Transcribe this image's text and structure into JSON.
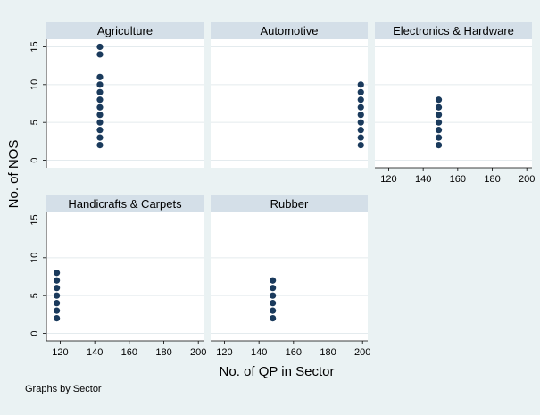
{
  "chart_data": {
    "type": "scatter",
    "facet_by_label": "Graphs by Sector",
    "xlabel": "No. of QP in Sector",
    "ylabel": "No. of NOS",
    "xlim": [
      112,
      203
    ],
    "ylim": [
      -1,
      16
    ],
    "xticks": [
      120,
      140,
      160,
      180,
      200
    ],
    "yticks": [
      0,
      5,
      10,
      15
    ],
    "grid": true,
    "point_color": "#1a3a5c",
    "panels": [
      {
        "title": "Agriculture",
        "x": 143,
        "y": [
          2,
          3,
          4,
          5,
          6,
          7,
          8,
          9,
          10,
          11,
          14,
          15
        ]
      },
      {
        "title": "Automotive",
        "x": 199,
        "y": [
          2,
          3,
          4,
          5,
          6,
          7,
          8,
          9,
          10
        ]
      },
      {
        "title": "Electronics & Hardware",
        "x": 149,
        "y": [
          2,
          3,
          4,
          5,
          6,
          7,
          8
        ]
      },
      {
        "title": "Handicrafts & Carpets",
        "x": 118,
        "y": [
          2,
          3,
          4,
          5,
          6,
          7,
          8
        ]
      },
      {
        "title": "Rubber",
        "x": 148,
        "y": [
          2,
          3,
          4,
          5,
          6,
          7
        ]
      }
    ]
  }
}
